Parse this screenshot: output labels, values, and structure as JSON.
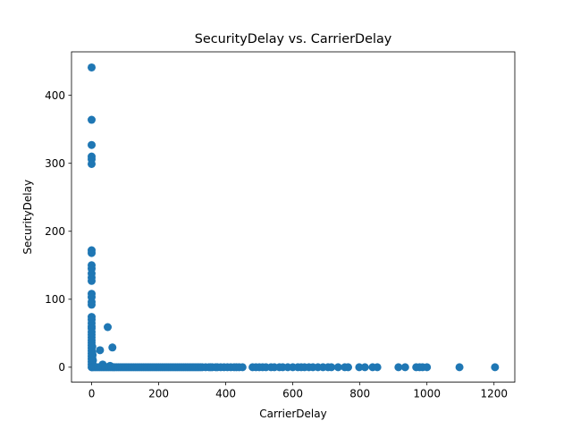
{
  "chart_data": {
    "type": "scatter",
    "title": "SecurityDelay vs. CarrierDelay",
    "xlabel": "CarrierDelay",
    "ylabel": "SecurityDelay",
    "xlim": [
      -60,
      1262
    ],
    "ylim": [
      -22,
      464
    ],
    "xticks": [
      0,
      200,
      400,
      600,
      800,
      1000,
      1200
    ],
    "yticks": [
      0,
      100,
      200,
      300,
      400
    ],
    "grid": false,
    "legend": "none",
    "marker_color": "#1f77b4",
    "series": [
      {
        "points": [
          [
            0,
            441
          ],
          [
            0,
            364
          ],
          [
            0,
            327
          ],
          [
            0,
            310
          ],
          [
            0,
            306
          ],
          [
            0,
            299
          ],
          [
            0,
            172
          ],
          [
            0,
            168
          ],
          [
            0,
            150
          ],
          [
            0,
            145
          ],
          [
            0,
            138
          ],
          [
            0,
            132
          ],
          [
            0,
            127
          ],
          [
            0,
            108
          ],
          [
            0,
            103
          ],
          [
            0,
            96
          ],
          [
            0,
            92
          ],
          [
            0,
            74
          ],
          [
            0,
            70
          ],
          [
            0,
            65
          ],
          [
            0,
            60
          ],
          [
            0,
            57
          ],
          [
            0,
            52
          ],
          [
            0,
            48
          ],
          [
            0,
            44
          ],
          [
            0,
            40
          ],
          [
            0,
            36
          ],
          [
            0,
            32
          ],
          [
            0,
            28
          ],
          [
            0,
            24
          ],
          [
            0,
            20
          ],
          [
            0,
            16
          ],
          [
            0,
            12
          ],
          [
            0,
            8
          ],
          [
            0,
            4
          ],
          [
            0,
            0
          ],
          [
            2,
            30
          ],
          [
            2,
            22
          ],
          [
            2,
            14
          ],
          [
            2,
            6
          ],
          [
            3,
            18
          ],
          [
            4,
            10
          ],
          [
            4,
            3
          ],
          [
            48,
            59
          ],
          [
            62,
            29
          ],
          [
            25,
            25
          ],
          [
            33,
            4
          ],
          [
            55,
            2
          ],
          [
            1,
            0
          ],
          [
            5,
            0
          ],
          [
            10,
            0
          ],
          [
            15,
            0
          ],
          [
            20,
            0
          ],
          [
            25,
            0
          ],
          [
            30,
            0
          ],
          [
            35,
            0
          ],
          [
            40,
            0
          ],
          [
            45,
            0
          ],
          [
            50,
            0
          ],
          [
            55,
            0
          ],
          [
            60,
            0
          ],
          [
            65,
            0
          ],
          [
            70,
            0
          ],
          [
            75,
            0
          ],
          [
            80,
            0
          ],
          [
            85,
            0
          ],
          [
            90,
            0
          ],
          [
            95,
            0
          ],
          [
            100,
            0
          ],
          [
            105,
            0
          ],
          [
            110,
            0
          ],
          [
            115,
            0
          ],
          [
            120,
            0
          ],
          [
            125,
            0
          ],
          [
            130,
            0
          ],
          [
            135,
            0
          ],
          [
            140,
            0
          ],
          [
            145,
            0
          ],
          [
            150,
            0
          ],
          [
            155,
            0
          ],
          [
            160,
            0
          ],
          [
            165,
            0
          ],
          [
            170,
            0
          ],
          [
            175,
            0
          ],
          [
            180,
            0
          ],
          [
            185,
            0
          ],
          [
            190,
            0
          ],
          [
            195,
            0
          ],
          [
            200,
            0
          ],
          [
            205,
            0
          ],
          [
            210,
            0
          ],
          [
            215,
            0
          ],
          [
            220,
            0
          ],
          [
            225,
            0
          ],
          [
            230,
            0
          ],
          [
            235,
            0
          ],
          [
            240,
            0
          ],
          [
            245,
            0
          ],
          [
            250,
            0
          ],
          [
            255,
            0
          ],
          [
            260,
            0
          ],
          [
            265,
            0
          ],
          [
            270,
            0
          ],
          [
            275,
            0
          ],
          [
            280,
            0
          ],
          [
            285,
            0
          ],
          [
            290,
            0
          ],
          [
            295,
            0
          ],
          [
            300,
            0
          ],
          [
            305,
            0
          ],
          [
            310,
            0
          ],
          [
            315,
            0
          ],
          [
            320,
            0
          ],
          [
            325,
            0
          ],
          [
            330,
            0
          ],
          [
            340,
            0
          ],
          [
            350,
            0
          ],
          [
            355,
            0
          ],
          [
            360,
            0
          ],
          [
            370,
            0
          ],
          [
            375,
            0
          ],
          [
            385,
            0
          ],
          [
            395,
            0
          ],
          [
            405,
            0
          ],
          [
            415,
            0
          ],
          [
            425,
            0
          ],
          [
            432,
            0
          ],
          [
            440,
            0
          ],
          [
            450,
            0
          ],
          [
            480,
            0
          ],
          [
            490,
            0
          ],
          [
            500,
            0
          ],
          [
            510,
            0
          ],
          [
            520,
            0
          ],
          [
            535,
            0
          ],
          [
            545,
            0
          ],
          [
            560,
            0
          ],
          [
            570,
            0
          ],
          [
            585,
            0
          ],
          [
            600,
            0
          ],
          [
            615,
            0
          ],
          [
            625,
            0
          ],
          [
            635,
            0
          ],
          [
            648,
            0
          ],
          [
            660,
            0
          ],
          [
            675,
            0
          ],
          [
            690,
            0
          ],
          [
            705,
            0
          ],
          [
            715,
            0
          ],
          [
            735,
            0
          ],
          [
            755,
            0
          ],
          [
            765,
            0
          ],
          [
            798,
            0
          ],
          [
            815,
            0
          ],
          [
            838,
            0
          ],
          [
            852,
            0
          ],
          [
            915,
            0
          ],
          [
            935,
            0
          ],
          [
            968,
            0
          ],
          [
            978,
            0
          ],
          [
            987,
            0
          ],
          [
            1000,
            0
          ],
          [
            1097,
            0
          ],
          [
            1203,
            0
          ]
        ]
      }
    ]
  }
}
